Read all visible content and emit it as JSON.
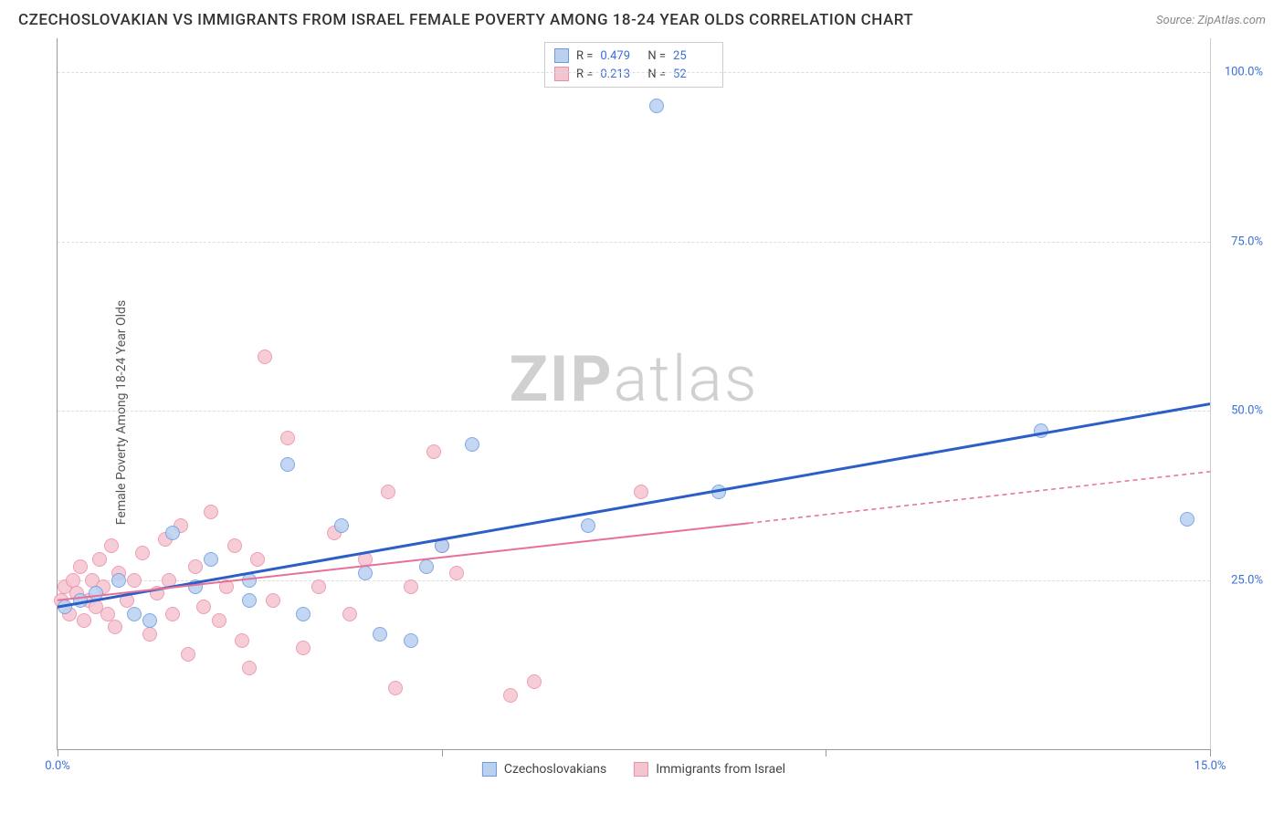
{
  "title": "CZECHOSLOVAKIAN VS IMMIGRANTS FROM ISRAEL FEMALE POVERTY AMONG 18-24 YEAR OLDS CORRELATION CHART",
  "source": "Source: ZipAtlas.com",
  "watermark_a": "ZIP",
  "watermark_b": "atlas",
  "ylabel": "Female Poverty Among 18-24 Year Olds",
  "chart": {
    "type": "scatter",
    "xlim": [
      0,
      15
    ],
    "ylim": [
      0,
      105
    ],
    "x_ticks": [
      0,
      5,
      10,
      15
    ],
    "x_tick_labels": [
      "0.0%",
      "",
      "",
      "15.0%"
    ],
    "y_gridlines": [
      25,
      50,
      75,
      100
    ],
    "y_tick_labels": [
      "25.0%",
      "50.0%",
      "75.0%",
      "100.0%"
    ],
    "background_color": "#ffffff",
    "grid_color": "#dddddd",
    "axis_color": "#999999",
    "tick_label_color": "#3b6fd6",
    "series": [
      {
        "name": "Czechoslovakians",
        "color_fill": "#b9d0f0",
        "color_stroke": "#6a9be0",
        "r_value": "0.479",
        "n_value": "25",
        "marker_radius": 8,
        "trend": {
          "x0": 0,
          "y0": 21,
          "x1": 15,
          "y1": 51,
          "solid_until_x": 15,
          "color": "#2b5fc7",
          "width": 3
        },
        "points": [
          [
            0.1,
            21
          ],
          [
            0.3,
            22
          ],
          [
            0.5,
            23
          ],
          [
            1.0,
            20
          ],
          [
            1.5,
            32
          ],
          [
            1.8,
            24
          ],
          [
            2.5,
            22
          ],
          [
            2.5,
            25
          ],
          [
            3.0,
            42
          ],
          [
            3.2,
            20
          ],
          [
            3.7,
            33
          ],
          [
            4.0,
            26
          ],
          [
            4.2,
            17
          ],
          [
            4.6,
            16
          ],
          [
            4.8,
            27
          ],
          [
            5.0,
            30
          ],
          [
            5.4,
            45
          ],
          [
            6.9,
            33
          ],
          [
            7.8,
            95
          ],
          [
            8.6,
            38
          ],
          [
            12.8,
            47
          ],
          [
            14.7,
            34
          ],
          [
            0.8,
            25
          ],
          [
            2.0,
            28
          ],
          [
            1.2,
            19
          ]
        ]
      },
      {
        "name": "Immigrants from Israel",
        "color_fill": "#f5c4d1",
        "color_stroke": "#eb8fa8",
        "r_value": "0.213",
        "n_value": "52",
        "marker_radius": 8,
        "trend": {
          "x0": 0,
          "y0": 22,
          "x1": 15,
          "y1": 41,
          "solid_until_x": 9,
          "color": "#e86f95",
          "width": 2
        },
        "points": [
          [
            0.05,
            22
          ],
          [
            0.1,
            24
          ],
          [
            0.15,
            20
          ],
          [
            0.2,
            25
          ],
          [
            0.25,
            23
          ],
          [
            0.3,
            27
          ],
          [
            0.35,
            19
          ],
          [
            0.4,
            22
          ],
          [
            0.45,
            25
          ],
          [
            0.5,
            21
          ],
          [
            0.55,
            28
          ],
          [
            0.6,
            24
          ],
          [
            0.7,
            30
          ],
          [
            0.75,
            18
          ],
          [
            0.8,
            26
          ],
          [
            0.9,
            22
          ],
          [
            1.0,
            25
          ],
          [
            1.1,
            29
          ],
          [
            1.2,
            17
          ],
          [
            1.3,
            23
          ],
          [
            1.4,
            31
          ],
          [
            1.5,
            20
          ],
          [
            1.6,
            33
          ],
          [
            1.7,
            14
          ],
          [
            1.8,
            27
          ],
          [
            1.9,
            21
          ],
          [
            2.0,
            35
          ],
          [
            2.1,
            19
          ],
          [
            2.2,
            24
          ],
          [
            2.3,
            30
          ],
          [
            2.4,
            16
          ],
          [
            2.5,
            12
          ],
          [
            2.6,
            28
          ],
          [
            2.7,
            58
          ],
          [
            2.8,
            22
          ],
          [
            3.0,
            46
          ],
          [
            3.2,
            15
          ],
          [
            3.4,
            24
          ],
          [
            3.6,
            32
          ],
          [
            3.8,
            20
          ],
          [
            4.0,
            28
          ],
          [
            4.3,
            38
          ],
          [
            4.4,
            9
          ],
          [
            4.6,
            24
          ],
          [
            4.9,
            44
          ],
          [
            5.0,
            30
          ],
          [
            5.2,
            26
          ],
          [
            5.9,
            8
          ],
          [
            6.2,
            10
          ],
          [
            7.6,
            38
          ],
          [
            1.45,
            25
          ],
          [
            0.65,
            20
          ]
        ]
      }
    ]
  },
  "bottom_legend": [
    {
      "label": "Czechoslovakians",
      "fill": "#b9d0f0",
      "stroke": "#6a9be0"
    },
    {
      "label": "Immigrants from Israel",
      "fill": "#f5c4d1",
      "stroke": "#eb8fa8"
    }
  ]
}
